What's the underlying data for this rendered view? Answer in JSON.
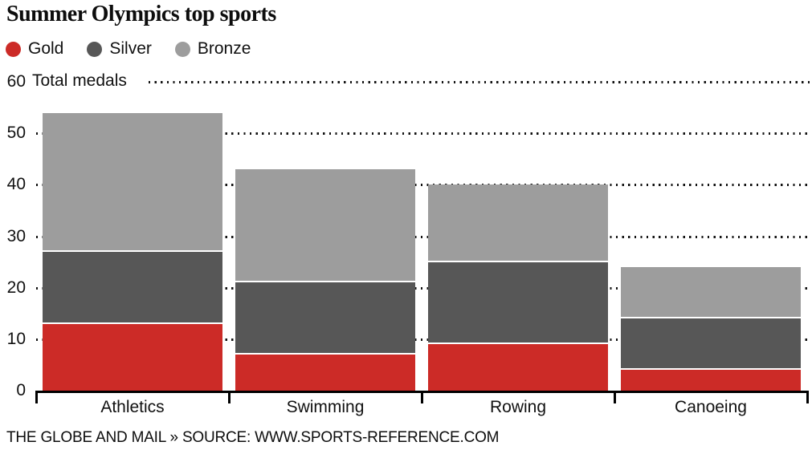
{
  "title": "Summer Olympics top sports",
  "footer": "THE GLOBE AND MAIL » SOURCE: WWW.SPORTS-REFERENCE.COM",
  "legend": [
    {
      "name": "gold-swatch",
      "label": "Gold",
      "color": "#cc2b27"
    },
    {
      "name": "silver-swatch",
      "label": "Silver",
      "color": "#575757"
    },
    {
      "name": "bronze-swatch",
      "label": "Bronze",
      "color": "#9d9d9d"
    }
  ],
  "chart_data": {
    "type": "bar",
    "stacked": true,
    "title": "Summer Olympics top sports",
    "ylabel": "Total medals",
    "xlabel": "",
    "ylim": [
      0,
      60
    ],
    "yticks": [
      0,
      10,
      20,
      30,
      40,
      50,
      60
    ],
    "grid": "dotted horizontal, behind bars",
    "legend_position": "top-left",
    "categories": [
      "Athletics",
      "Swimming",
      "Rowing",
      "Canoeing"
    ],
    "series": [
      {
        "name": "Gold",
        "color": "#cc2b27",
        "values": [
          13,
          7,
          9,
          4
        ]
      },
      {
        "name": "Silver",
        "color": "#575757",
        "values": [
          14,
          14,
          16,
          10
        ]
      },
      {
        "name": "Bronze",
        "color": "#9d9d9d",
        "values": [
          27,
          22,
          15,
          10
        ]
      }
    ],
    "totals": [
      54,
      43,
      40,
      24
    ]
  }
}
